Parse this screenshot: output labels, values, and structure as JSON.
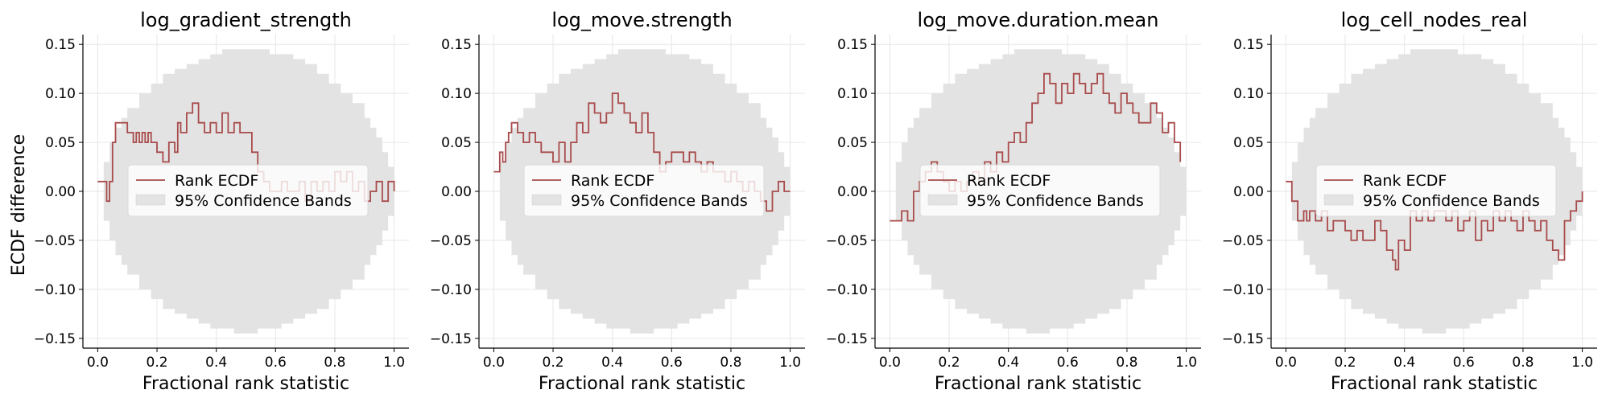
{
  "figure": {
    "ylabel": "ECDF difference",
    "xlabel": "Fractional rank statistic"
  },
  "colors": {
    "line": "#a84b4b",
    "band": "#e3e3e3",
    "grid": "#e6e6e6",
    "axis": "#000000",
    "legend_bg": "#ffffff",
    "legend_border": "#d9d9d9"
  },
  "legend": {
    "line_label": "Rank ECDF",
    "band_label": "95% Confidence Bands"
  },
  "chart_data": [
    {
      "type": "line",
      "title": "log_gradient_strength",
      "xlabel": "Fractional rank statistic",
      "ylabel": "ECDF difference",
      "xlim": [
        -0.05,
        1.05
      ],
      "ylim": [
        -0.16,
        0.16
      ],
      "xticks": [
        0.0,
        0.2,
        0.4,
        0.6,
        0.8,
        1.0
      ],
      "xtick_labels": [
        "0.0",
        "0.2",
        "0.4",
        "0.6",
        "0.8",
        "1.0"
      ],
      "yticks": [
        -0.15,
        -0.1,
        -0.05,
        0.0,
        0.05,
        0.1,
        0.15
      ],
      "ytick_labels": [
        "−0.15",
        "−0.10",
        "−0.05",
        "0.00",
        "0.05",
        "0.10",
        "0.15"
      ],
      "grid": true,
      "legend_position": "center-left",
      "series": [
        {
          "name": "Rank ECDF",
          "x": [
            0.0,
            0.03,
            0.04,
            0.05,
            0.06,
            0.08,
            0.1,
            0.12,
            0.13,
            0.14,
            0.15,
            0.16,
            0.17,
            0.18,
            0.2,
            0.22,
            0.24,
            0.26,
            0.27,
            0.28,
            0.3,
            0.32,
            0.34,
            0.36,
            0.38,
            0.4,
            0.42,
            0.44,
            0.46,
            0.48,
            0.5,
            0.52,
            0.54,
            0.56,
            0.58,
            0.6,
            0.62,
            0.64,
            0.66,
            0.68,
            0.7,
            0.72,
            0.74,
            0.76,
            0.78,
            0.8,
            0.82,
            0.84,
            0.86,
            0.88,
            0.9,
            0.92,
            0.94,
            0.96,
            0.98,
            1.0
          ],
          "y": [
            0.01,
            -0.01,
            0.01,
            0.05,
            0.07,
            0.07,
            0.06,
            0.05,
            0.06,
            0.05,
            0.06,
            0.05,
            0.06,
            0.05,
            0.04,
            0.03,
            0.05,
            0.04,
            0.07,
            0.06,
            0.08,
            0.09,
            0.07,
            0.06,
            0.07,
            0.06,
            0.08,
            0.06,
            0.07,
            0.06,
            0.06,
            0.04,
            0.02,
            0.01,
            0.0,
            0.0,
            0.01,
            0.0,
            0.0,
            0.01,
            -0.01,
            0.01,
            0.0,
            0.01,
            0.0,
            0.02,
            0.01,
            0.02,
            0.0,
            0.01,
            -0.01,
            0.0,
            0.01,
            -0.01,
            0.01,
            0.0
          ]
        }
      ],
      "band": {
        "name": "95% Confidence Bands",
        "x": [
          0.0,
          0.02,
          0.04,
          0.06,
          0.08,
          0.1,
          0.14,
          0.18,
          0.22,
          0.26,
          0.3,
          0.34,
          0.38,
          0.42,
          0.46,
          0.5,
          0.54,
          0.58,
          0.62,
          0.66,
          0.7,
          0.74,
          0.78,
          0.82,
          0.86,
          0.9,
          0.92,
          0.94,
          0.96,
          0.98,
          1.0
        ],
        "lower": [
          0.0,
          -0.03,
          -0.05,
          -0.065,
          -0.075,
          -0.085,
          -0.1,
          -0.11,
          -0.12,
          -0.125,
          -0.13,
          -0.135,
          -0.14,
          -0.14,
          -0.145,
          -0.145,
          -0.14,
          -0.14,
          -0.135,
          -0.13,
          -0.125,
          -0.12,
          -0.11,
          -0.1,
          -0.09,
          -0.075,
          -0.065,
          -0.055,
          -0.04,
          -0.025,
          0.0
        ],
        "upper": [
          0.0,
          0.03,
          0.05,
          0.065,
          0.075,
          0.085,
          0.1,
          0.11,
          0.12,
          0.125,
          0.13,
          0.135,
          0.14,
          0.145,
          0.145,
          0.145,
          0.145,
          0.14,
          0.14,
          0.135,
          0.13,
          0.12,
          0.11,
          0.1,
          0.09,
          0.075,
          0.065,
          0.055,
          0.04,
          0.025,
          0.0
        ]
      }
    },
    {
      "type": "line",
      "title": "log_move.strength",
      "xlabel": "Fractional rank statistic",
      "ylabel": "",
      "xlim": [
        -0.05,
        1.05
      ],
      "ylim": [
        -0.16,
        0.16
      ],
      "xticks": [
        0.0,
        0.2,
        0.4,
        0.6,
        0.8,
        1.0
      ],
      "xtick_labels": [
        "0.0",
        "0.2",
        "0.4",
        "0.6",
        "0.8",
        "1.0"
      ],
      "yticks": [
        -0.15,
        -0.1,
        -0.05,
        0.0,
        0.05,
        0.1,
        0.15
      ],
      "ytick_labels": [
        "−0.15",
        "−0.10",
        "−0.05",
        "0.00",
        "0.05",
        "0.10",
        "0.15"
      ],
      "grid": true,
      "legend_position": "center-left",
      "series": [
        {
          "name": "Rank ECDF",
          "x": [
            0.0,
            0.01,
            0.02,
            0.03,
            0.04,
            0.05,
            0.06,
            0.08,
            0.1,
            0.12,
            0.14,
            0.16,
            0.18,
            0.2,
            0.22,
            0.24,
            0.26,
            0.28,
            0.3,
            0.32,
            0.34,
            0.36,
            0.38,
            0.4,
            0.42,
            0.44,
            0.46,
            0.48,
            0.5,
            0.52,
            0.54,
            0.56,
            0.58,
            0.6,
            0.62,
            0.64,
            0.66,
            0.68,
            0.7,
            0.72,
            0.74,
            0.76,
            0.78,
            0.8,
            0.82,
            0.84,
            0.86,
            0.88,
            0.9,
            0.92,
            0.94,
            0.96,
            0.98,
            1.0
          ],
          "y": [
            0.02,
            0.02,
            0.04,
            0.03,
            0.05,
            0.06,
            0.07,
            0.06,
            0.05,
            0.06,
            0.05,
            0.04,
            0.04,
            0.03,
            0.05,
            0.03,
            0.05,
            0.07,
            0.06,
            0.09,
            0.08,
            0.07,
            0.08,
            0.1,
            0.09,
            0.08,
            0.07,
            0.06,
            0.08,
            0.06,
            0.04,
            0.02,
            0.03,
            0.04,
            0.04,
            0.03,
            0.04,
            0.03,
            0.02,
            0.03,
            0.02,
            0.02,
            0.01,
            0.02,
            0.01,
            0.0,
            0.01,
            0.0,
            -0.01,
            -0.02,
            0.0,
            0.01,
            0.0,
            0.0
          ]
        }
      ],
      "band": {
        "name": "95% Confidence Bands",
        "x": [
          0.0,
          0.02,
          0.04,
          0.06,
          0.08,
          0.1,
          0.14,
          0.18,
          0.22,
          0.26,
          0.3,
          0.34,
          0.38,
          0.42,
          0.46,
          0.5,
          0.54,
          0.58,
          0.62,
          0.66,
          0.7,
          0.74,
          0.78,
          0.82,
          0.86,
          0.9,
          0.92,
          0.94,
          0.96,
          0.98,
          1.0
        ],
        "lower": [
          0.0,
          -0.03,
          -0.05,
          -0.065,
          -0.075,
          -0.085,
          -0.1,
          -0.11,
          -0.12,
          -0.125,
          -0.13,
          -0.135,
          -0.14,
          -0.14,
          -0.145,
          -0.145,
          -0.14,
          -0.14,
          -0.135,
          -0.13,
          -0.125,
          -0.12,
          -0.11,
          -0.1,
          -0.09,
          -0.075,
          -0.065,
          -0.055,
          -0.04,
          -0.025,
          0.0
        ],
        "upper": [
          0.0,
          0.03,
          0.05,
          0.065,
          0.075,
          0.085,
          0.1,
          0.11,
          0.12,
          0.125,
          0.13,
          0.135,
          0.14,
          0.145,
          0.145,
          0.145,
          0.145,
          0.14,
          0.14,
          0.135,
          0.13,
          0.12,
          0.11,
          0.1,
          0.09,
          0.075,
          0.065,
          0.055,
          0.04,
          0.025,
          0.0
        ]
      }
    },
    {
      "type": "line",
      "title": "log_move.duration.mean",
      "xlabel": "Fractional rank statistic",
      "ylabel": "",
      "xlim": [
        -0.05,
        1.05
      ],
      "ylim": [
        -0.16,
        0.16
      ],
      "xticks": [
        0.0,
        0.2,
        0.4,
        0.6,
        0.8,
        1.0
      ],
      "xtick_labels": [
        "0.0",
        "0.2",
        "0.4",
        "0.6",
        "0.8",
        "1.0"
      ],
      "yticks": [
        -0.15,
        -0.1,
        -0.05,
        0.0,
        0.05,
        0.1,
        0.15
      ],
      "ytick_labels": [
        "−0.15",
        "−0.10",
        "−0.05",
        "0.00",
        "0.05",
        "0.10",
        "0.15"
      ],
      "grid": true,
      "legend_position": "center-left",
      "series": [
        {
          "name": "Rank ECDF",
          "x": [
            0.0,
            0.02,
            0.04,
            0.06,
            0.08,
            0.1,
            0.12,
            0.14,
            0.16,
            0.18,
            0.2,
            0.22,
            0.24,
            0.26,
            0.28,
            0.3,
            0.32,
            0.34,
            0.36,
            0.38,
            0.4,
            0.42,
            0.44,
            0.46,
            0.48,
            0.5,
            0.52,
            0.54,
            0.56,
            0.58,
            0.6,
            0.62,
            0.64,
            0.66,
            0.68,
            0.7,
            0.72,
            0.74,
            0.76,
            0.78,
            0.8,
            0.82,
            0.84,
            0.86,
            0.88,
            0.9,
            0.92,
            0.94,
            0.96,
            0.98
          ],
          "y": [
            -0.03,
            -0.03,
            -0.02,
            -0.03,
            0.0,
            0.01,
            0.02,
            0.03,
            0.02,
            0.01,
            0.0,
            0.01,
            0.0,
            0.01,
            0.02,
            0.01,
            0.03,
            0.02,
            0.04,
            0.03,
            0.05,
            0.06,
            0.05,
            0.07,
            0.09,
            0.1,
            0.12,
            0.11,
            0.09,
            0.11,
            0.1,
            0.12,
            0.11,
            0.1,
            0.11,
            0.12,
            0.1,
            0.09,
            0.08,
            0.1,
            0.09,
            0.08,
            0.07,
            0.07,
            0.09,
            0.08,
            0.06,
            0.07,
            0.05,
            0.03
          ]
        }
      ],
      "band": {
        "name": "95% Confidence Bands",
        "x": [
          0.0,
          0.02,
          0.04,
          0.06,
          0.08,
          0.1,
          0.14,
          0.18,
          0.22,
          0.26,
          0.3,
          0.34,
          0.38,
          0.42,
          0.46,
          0.5,
          0.54,
          0.58,
          0.62,
          0.66,
          0.7,
          0.74,
          0.78,
          0.82,
          0.86,
          0.9,
          0.92,
          0.94,
          0.96,
          0.98,
          1.0
        ],
        "lower": [
          0.0,
          -0.03,
          -0.05,
          -0.065,
          -0.075,
          -0.085,
          -0.1,
          -0.11,
          -0.12,
          -0.125,
          -0.13,
          -0.135,
          -0.14,
          -0.14,
          -0.145,
          -0.145,
          -0.14,
          -0.14,
          -0.135,
          -0.13,
          -0.125,
          -0.12,
          -0.11,
          -0.1,
          -0.09,
          -0.075,
          -0.065,
          -0.055,
          -0.04,
          -0.025,
          0.0
        ],
        "upper": [
          0.0,
          0.03,
          0.05,
          0.065,
          0.075,
          0.085,
          0.1,
          0.11,
          0.12,
          0.125,
          0.13,
          0.135,
          0.14,
          0.145,
          0.145,
          0.145,
          0.145,
          0.14,
          0.14,
          0.135,
          0.13,
          0.12,
          0.11,
          0.1,
          0.09,
          0.075,
          0.065,
          0.055,
          0.04,
          0.025,
          0.0
        ]
      }
    },
    {
      "type": "line",
      "title": "log_cell_nodes_real",
      "xlabel": "Fractional rank statistic",
      "ylabel": "",
      "xlim": [
        -0.05,
        1.05
      ],
      "ylim": [
        -0.16,
        0.16
      ],
      "xticks": [
        0.0,
        0.2,
        0.4,
        0.6,
        0.8,
        1.0
      ],
      "xtick_labels": [
        "0.0",
        "0.2",
        "0.4",
        "0.6",
        "0.8",
        "1.0"
      ],
      "yticks": [
        -0.15,
        -0.1,
        -0.05,
        0.0,
        0.05,
        0.1,
        0.15
      ],
      "ytick_labels": [
        "−0.15",
        "−0.10",
        "−0.05",
        "0.00",
        "0.05",
        "0.10",
        "0.15"
      ],
      "grid": true,
      "legend_position": "center-left",
      "series": [
        {
          "name": "Rank ECDF",
          "x": [
            0.0,
            0.02,
            0.04,
            0.06,
            0.07,
            0.08,
            0.1,
            0.12,
            0.14,
            0.16,
            0.18,
            0.2,
            0.22,
            0.24,
            0.26,
            0.28,
            0.3,
            0.32,
            0.34,
            0.36,
            0.37,
            0.38,
            0.4,
            0.42,
            0.44,
            0.46,
            0.48,
            0.5,
            0.52,
            0.54,
            0.56,
            0.58,
            0.6,
            0.62,
            0.64,
            0.66,
            0.68,
            0.7,
            0.72,
            0.74,
            0.76,
            0.78,
            0.8,
            0.82,
            0.84,
            0.86,
            0.88,
            0.9,
            0.92,
            0.94,
            0.96,
            0.98,
            1.0
          ],
          "y": [
            0.01,
            -0.01,
            -0.03,
            -0.02,
            -0.03,
            -0.02,
            -0.03,
            -0.02,
            -0.04,
            -0.03,
            -0.03,
            -0.04,
            -0.05,
            -0.04,
            -0.05,
            -0.05,
            -0.03,
            -0.04,
            -0.06,
            -0.07,
            -0.08,
            -0.05,
            -0.06,
            -0.02,
            -0.03,
            -0.02,
            -0.03,
            -0.02,
            -0.02,
            -0.03,
            -0.02,
            -0.04,
            -0.03,
            -0.02,
            -0.05,
            -0.03,
            -0.04,
            -0.02,
            -0.03,
            -0.02,
            -0.03,
            -0.04,
            -0.02,
            -0.03,
            -0.04,
            -0.03,
            -0.05,
            -0.06,
            -0.07,
            -0.03,
            -0.02,
            -0.01,
            0.0
          ]
        }
      ],
      "band": {
        "name": "95% Confidence Bands",
        "x": [
          0.0,
          0.02,
          0.04,
          0.06,
          0.08,
          0.1,
          0.14,
          0.18,
          0.22,
          0.26,
          0.3,
          0.34,
          0.38,
          0.42,
          0.46,
          0.5,
          0.54,
          0.58,
          0.62,
          0.66,
          0.7,
          0.74,
          0.78,
          0.82,
          0.86,
          0.9,
          0.92,
          0.94,
          0.96,
          0.98,
          1.0
        ],
        "lower": [
          0.0,
          -0.03,
          -0.05,
          -0.065,
          -0.075,
          -0.085,
          -0.1,
          -0.11,
          -0.12,
          -0.125,
          -0.13,
          -0.135,
          -0.14,
          -0.14,
          -0.145,
          -0.145,
          -0.14,
          -0.14,
          -0.135,
          -0.13,
          -0.125,
          -0.12,
          -0.11,
          -0.1,
          -0.09,
          -0.075,
          -0.065,
          -0.055,
          -0.04,
          -0.025,
          0.0
        ],
        "upper": [
          0.0,
          0.03,
          0.05,
          0.065,
          0.075,
          0.085,
          0.1,
          0.11,
          0.12,
          0.125,
          0.13,
          0.135,
          0.14,
          0.145,
          0.145,
          0.145,
          0.145,
          0.14,
          0.14,
          0.135,
          0.13,
          0.12,
          0.11,
          0.1,
          0.09,
          0.075,
          0.065,
          0.055,
          0.04,
          0.025,
          0.0
        ]
      }
    }
  ]
}
